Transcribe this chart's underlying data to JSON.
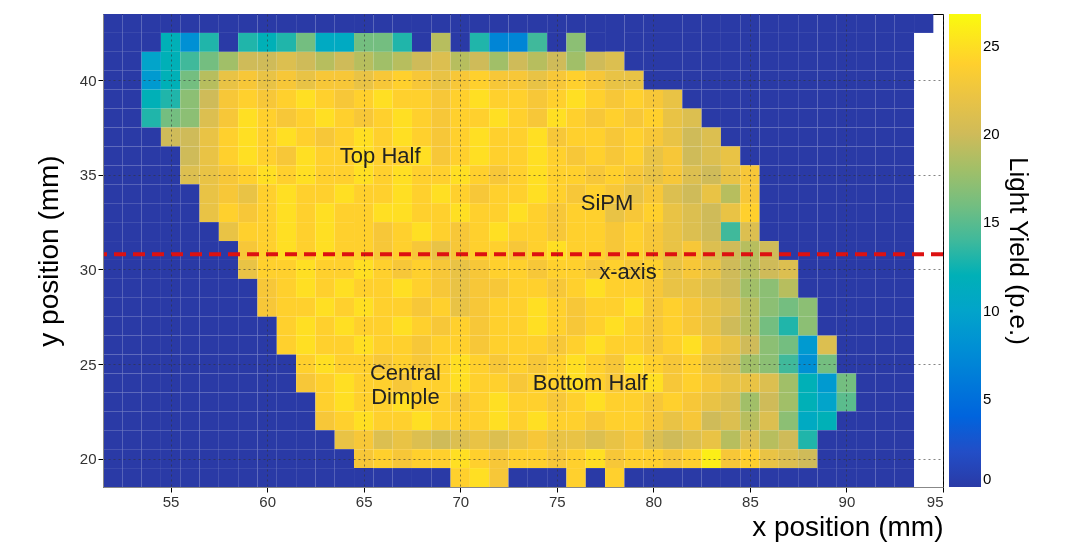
{
  "chart_data": {
    "type": "heatmap",
    "xlabel": "x position (mm)",
    "ylabel": "y position (mm)",
    "clabel": "Light Yield (p.e.)",
    "xlim": [
      51.5,
      95
    ],
    "ylim": [
      18.5,
      43.5
    ],
    "xticks": [
      55,
      60,
      65,
      70,
      75,
      80,
      85,
      90,
      95
    ],
    "yticks": [
      20,
      25,
      30,
      35,
      40
    ],
    "clim": [
      0,
      26.8
    ],
    "cticks": [
      0,
      5,
      10,
      15,
      20,
      25
    ],
    "grid": true,
    "x": [
      52,
      53,
      54,
      55,
      56,
      57,
      58,
      59,
      60,
      61,
      62,
      63,
      64,
      65,
      66,
      67,
      68,
      69,
      70,
      71,
      72,
      73,
      74,
      75,
      76,
      77,
      78,
      79,
      80,
      81,
      82,
      83,
      84,
      85,
      86,
      87,
      88,
      89,
      90,
      91,
      92,
      93,
      94
    ],
    "y": [
      43,
      42,
      41,
      40,
      39,
      38,
      37,
      36,
      35,
      34,
      33,
      32,
      31,
      30,
      29,
      28,
      27,
      26,
      25,
      24,
      23,
      22,
      21,
      20,
      19
    ],
    "cells": [
      [
        0,
        0,
        0,
        0,
        0,
        0,
        0,
        0,
        0,
        0,
        0,
        0,
        0,
        0,
        0,
        0,
        0,
        0,
        0,
        0,
        0,
        0,
        0,
        0,
        0,
        0,
        0,
        0,
        0,
        0,
        0,
        0,
        0,
        0,
        0,
        0,
        0,
        0,
        0,
        0,
        0,
        0,
        0
      ],
      [
        0,
        0,
        0,
        12,
        8,
        13,
        0,
        13,
        12,
        13,
        16,
        11,
        11,
        16,
        16,
        13,
        0,
        19,
        0,
        13,
        7,
        7,
        14,
        0,
        17,
        0,
        0,
        0,
        0,
        0,
        0,
        0,
        0,
        0,
        0,
        0,
        0,
        0,
        0,
        0,
        0,
        0,
        null
      ],
      [
        0,
        0,
        10,
        12,
        14,
        16,
        18,
        20,
        20,
        21,
        20,
        19,
        20,
        19,
        18,
        19,
        20,
        21,
        19,
        20,
        18,
        20,
        19,
        20,
        18,
        20,
        21,
        0,
        0,
        0,
        0,
        0,
        0,
        0,
        0,
        0,
        0,
        0,
        0,
        0,
        0,
        0,
        null
      ],
      [
        0,
        0,
        9,
        12,
        16,
        19,
        22,
        23,
        22,
        23,
        22,
        23,
        23,
        22,
        23,
        24,
        23,
        22,
        23,
        24,
        23,
        23,
        22,
        23,
        24,
        23,
        22,
        22,
        0,
        0,
        0,
        0,
        0,
        0,
        0,
        0,
        0,
        0,
        0,
        0,
        0,
        0,
        null
      ],
      [
        0,
        0,
        12,
        13,
        17,
        20,
        23,
        24,
        23,
        24,
        25,
        24,
        23,
        24,
        25,
        24,
        24,
        23,
        24,
        25,
        24,
        24,
        23,
        24,
        25,
        24,
        23,
        24,
        23,
        22,
        0,
        0,
        0,
        0,
        0,
        0,
        0,
        0,
        0,
        0,
        0,
        0,
        null
      ],
      [
        0,
        0,
        13,
        16,
        17,
        21,
        23,
        25,
        24,
        23,
        24,
        25,
        24,
        23,
        24,
        25,
        24,
        23,
        24,
        24,
        25,
        24,
        23,
        25,
        24,
        23,
        24,
        23,
        24,
        22,
        21,
        0,
        0,
        0,
        0,
        0,
        0,
        0,
        0,
        0,
        0,
        0,
        null
      ],
      [
        0,
        0,
        0,
        20,
        20,
        22,
        24,
        25,
        24,
        25,
        24,
        23,
        24,
        25,
        24,
        25,
        24,
        23,
        24,
        25,
        24,
        24,
        25,
        23,
        24,
        24,
        23,
        24,
        23,
        22,
        20,
        21,
        0,
        0,
        0,
        0,
        0,
        0,
        0,
        0,
        0,
        0,
        null
      ],
      [
        0,
        0,
        0,
        0,
        20,
        22,
        24,
        25,
        24,
        23,
        25,
        24,
        24,
        25,
        24,
        24,
        25,
        23,
        24,
        25,
        24,
        24,
        25,
        24,
        23,
        24,
        23,
        24,
        22,
        23,
        20,
        21,
        22,
        0,
        0,
        0,
        0,
        0,
        0,
        0,
        0,
        0,
        null
      ],
      [
        0,
        0,
        0,
        0,
        21,
        22,
        23,
        24,
        25,
        24,
        25,
        24,
        24,
        25,
        24,
        25,
        24,
        24,
        25,
        24,
        23,
        24,
        25,
        24,
        24,
        23,
        24,
        23,
        22,
        23,
        21,
        20,
        22,
        23,
        0,
        0,
        0,
        0,
        0,
        0,
        0,
        0,
        null
      ],
      [
        0,
        0,
        0,
        0,
        0,
        22,
        23,
        22,
        24,
        25,
        24,
        24,
        25,
        24,
        24,
        25,
        24,
        25,
        24,
        23,
        24,
        24,
        25,
        24,
        23,
        24,
        23,
        22,
        23,
        21,
        20,
        22,
        19,
        23,
        0,
        0,
        0,
        0,
        0,
        0,
        0,
        0,
        null
      ],
      [
        0,
        0,
        0,
        0,
        0,
        22,
        24,
        23,
        24,
        25,
        24,
        25,
        24,
        24,
        25,
        25,
        24,
        24,
        25,
        24,
        24,
        25,
        24,
        23,
        24,
        24,
        22,
        23,
        24,
        22,
        21,
        20,
        22,
        24,
        0,
        0,
        0,
        0,
        0,
        0,
        0,
        0,
        null
      ],
      [
        0,
        0,
        0,
        0,
        0,
        0,
        22,
        24,
        24,
        25,
        24,
        25,
        24,
        24,
        23,
        24,
        25,
        24,
        23,
        24,
        25,
        24,
        24,
        23,
        24,
        24,
        23,
        24,
        23,
        22,
        21,
        20,
        14,
        21,
        0,
        0,
        0,
        0,
        0,
        0,
        0,
        0,
        null
      ],
      [
        0,
        0,
        0,
        0,
        0,
        0,
        0,
        23,
        24,
        25,
        24,
        25,
        24,
        24,
        23,
        24,
        23,
        22,
        23,
        24,
        24,
        23,
        24,
        25,
        24,
        24,
        23,
        24,
        23,
        22,
        23,
        21,
        20,
        19,
        20,
        0,
        0,
        0,
        0,
        0,
        0,
        0,
        null
      ],
      [
        0,
        0,
        0,
        0,
        0,
        0,
        0,
        22,
        24,
        24,
        25,
        24,
        24,
        25,
        24,
        23,
        24,
        23,
        22,
        23,
        24,
        24,
        23,
        24,
        24,
        23,
        24,
        23,
        24,
        22,
        23,
        22,
        20,
        19,
        20,
        21,
        0,
        0,
        0,
        0,
        0,
        0,
        null
      ],
      [
        0,
        0,
        0,
        0,
        0,
        0,
        0,
        0,
        23,
        24,
        25,
        24,
        25,
        24,
        24,
        25,
        24,
        23,
        22,
        23,
        23,
        24,
        24,
        23,
        24,
        25,
        24,
        24,
        23,
        22,
        22,
        21,
        20,
        18,
        17,
        19,
        0,
        0,
        0,
        0,
        0,
        0,
        null
      ],
      [
        0,
        0,
        0,
        0,
        0,
        0,
        0,
        0,
        23,
        24,
        24,
        25,
        24,
        25,
        24,
        24,
        23,
        24,
        22,
        23,
        24,
        24,
        25,
        24,
        23,
        24,
        24,
        25,
        23,
        24,
        23,
        22,
        21,
        19,
        17,
        16,
        17,
        0,
        0,
        0,
        0,
        0,
        null
      ],
      [
        0,
        0,
        0,
        0,
        0,
        0,
        0,
        0,
        0,
        24,
        25,
        24,
        25,
        24,
        24,
        25,
        24,
        23,
        24,
        23,
        24,
        24,
        25,
        24,
        23,
        24,
        25,
        24,
        23,
        24,
        23,
        22,
        20,
        19,
        16,
        13,
        17,
        0,
        0,
        0,
        0,
        0,
        null
      ],
      [
        0,
        0,
        0,
        0,
        0,
        0,
        0,
        0,
        0,
        24,
        25,
        24,
        24,
        25,
        24,
        24,
        23,
        24,
        24,
        23,
        24,
        24,
        24,
        23,
        24,
        25,
        24,
        24,
        23,
        24,
        25,
        23,
        22,
        20,
        17,
        16,
        9,
        21,
        0,
        0,
        0,
        0,
        null
      ],
      [
        0,
        0,
        0,
        0,
        0,
        0,
        0,
        0,
        0,
        0,
        24,
        25,
        24,
        24,
        23,
        24,
        23,
        24,
        25,
        24,
        23,
        24,
        23,
        24,
        25,
        24,
        23,
        25,
        24,
        23,
        24,
        22,
        21,
        18,
        17,
        14,
        8,
        16,
        0,
        0,
        0,
        0,
        null
      ],
      [
        0,
        0,
        0,
        0,
        0,
        0,
        0,
        0,
        0,
        0,
        23,
        24,
        25,
        24,
        24,
        23,
        24,
        24,
        25,
        24,
        24,
        23,
        24,
        24,
        25,
        24,
        23,
        24,
        25,
        23,
        24,
        23,
        22,
        22,
        21,
        18,
        12,
        9,
        16,
        0,
        0,
        0,
        null
      ],
      [
        0,
        0,
        0,
        0,
        0,
        0,
        0,
        0,
        0,
        0,
        0,
        24,
        25,
        24,
        24,
        25,
        24,
        24,
        23,
        24,
        25,
        24,
        24,
        23,
        24,
        25,
        24,
        24,
        23,
        24,
        23,
        22,
        21,
        18,
        20,
        18,
        12,
        10,
        15,
        0,
        0,
        0,
        null
      ],
      [
        0,
        0,
        0,
        0,
        0,
        0,
        0,
        0,
        0,
        0,
        0,
        23,
        24,
        25,
        24,
        24,
        25,
        24,
        24,
        24,
        25,
        24,
        25,
        24,
        24,
        23,
        24,
        24,
        23,
        22,
        23,
        20,
        21,
        19,
        21,
        17,
        11,
        12,
        0,
        0,
        0,
        0,
        null
      ],
      [
        0,
        0,
        0,
        0,
        0,
        0,
        0,
        0,
        0,
        0,
        0,
        0,
        22,
        23,
        21,
        22,
        21,
        20,
        21,
        22,
        21,
        22,
        23,
        22,
        22,
        21,
        22,
        23,
        21,
        20,
        21,
        22,
        19,
        21,
        19,
        20,
        13,
        0,
        0,
        0,
        0,
        0,
        null
      ],
      [
        0,
        0,
        0,
        0,
        0,
        0,
        0,
        0,
        0,
        0,
        0,
        0,
        0,
        23,
        24,
        23,
        24,
        24,
        25,
        24,
        23,
        24,
        24,
        23,
        24,
        25,
        23,
        24,
        24,
        23,
        24,
        26,
        23,
        24,
        22,
        21,
        20,
        0,
        0,
        0,
        0,
        0,
        null
      ],
      [
        0,
        0,
        0,
        0,
        0,
        0,
        0,
        0,
        0,
        0,
        0,
        0,
        0,
        0,
        0,
        0,
        0,
        0,
        24,
        25,
        23,
        0,
        0,
        0,
        24,
        0,
        24,
        0,
        0,
        0,
        0,
        0,
        0,
        0,
        0,
        0,
        0,
        0,
        0,
        0,
        0,
        0,
        null
      ]
    ],
    "ref_lines": [
      {
        "axis": "y",
        "value": 30.8,
        "color": "#dd1111",
        "line_style": "dashed"
      }
    ],
    "annotations": [
      "Top Half",
      "SiPM",
      "x-axis",
      "Central\nDimple",
      "Bottom Half"
    ]
  }
}
